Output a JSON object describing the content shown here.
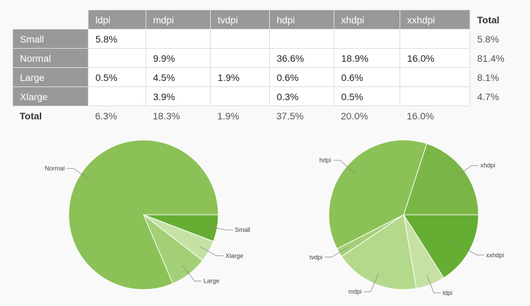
{
  "table": {
    "columns": [
      "ldpi",
      "mdpi",
      "tvdpi",
      "hdpi",
      "xhdpi",
      "xxhdpi"
    ],
    "total_label": "Total",
    "rows": [
      {
        "label": "Small",
        "values": [
          "5.8%",
          "",
          "",
          "",
          "",
          ""
        ],
        "total": "5.8%"
      },
      {
        "label": "Normal",
        "values": [
          "",
          "9.9%",
          "",
          "36.6%",
          "18.9%",
          "16.0%"
        ],
        "total": "81.4%"
      },
      {
        "label": "Large",
        "values": [
          "0.5%",
          "4.5%",
          "1.9%",
          "0.6%",
          "0.6%",
          ""
        ],
        "total": "8.1%"
      },
      {
        "label": "Xlarge",
        "values": [
          "",
          "3.9%",
          "",
          "0.3%",
          "0.5%",
          ""
        ],
        "total": "4.7%"
      }
    ],
    "totals": [
      "6.3%",
      "18.3%",
      "1.9%",
      "37.5%",
      "20.0%",
      "16.0%"
    ]
  },
  "chart_data": [
    {
      "type": "pie",
      "labels": [
        "Small",
        "Xlarge",
        "Large",
        "Normal"
      ],
      "values": [
        5.8,
        4.7,
        8.1,
        81.4
      ],
      "colors": [
        "#66ad33",
        "#c5e2a4",
        "#a3d077",
        "#8bc157"
      ]
    },
    {
      "type": "pie",
      "labels": [
        "xxhdpi",
        "ldpi",
        "mdpi",
        "tvdpi",
        "hdpi",
        "xhdpi"
      ],
      "values": [
        16.0,
        6.3,
        18.3,
        1.9,
        37.5,
        20.0
      ],
      "colors": [
        "#66ad33",
        "#c5e2a4",
        "#b4d98b",
        "#a3d077",
        "#8bc157",
        "#7ab646"
      ]
    }
  ]
}
